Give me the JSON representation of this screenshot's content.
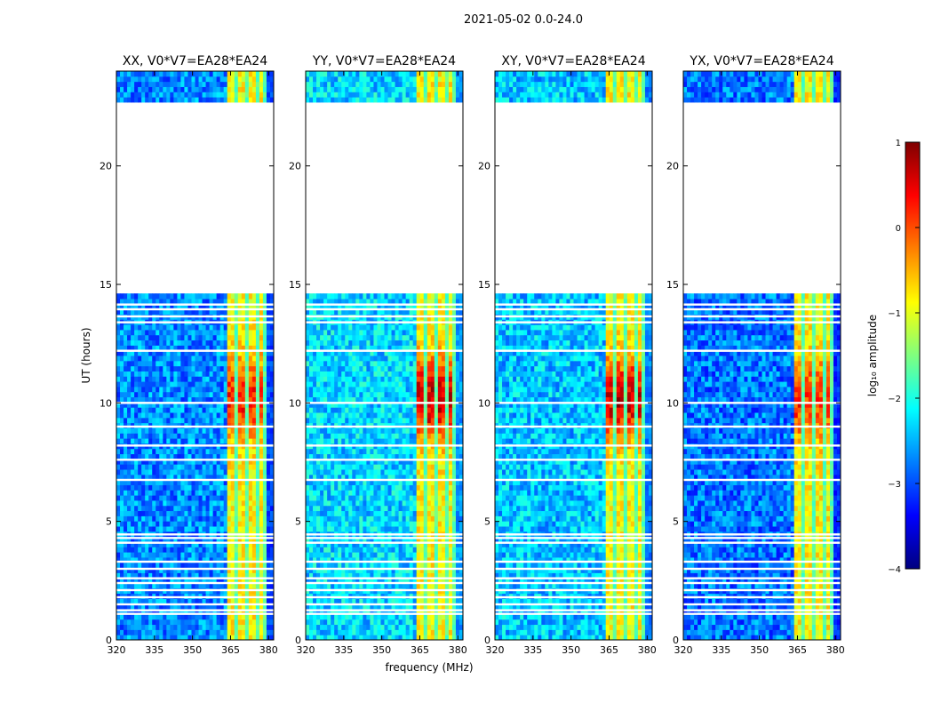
{
  "figure": {
    "suptitle": "2021-05-02 0.0-24.0",
    "xlabel": "frequency (MHz)",
    "ylabel": "UT (hours)"
  },
  "chart_data": [
    {
      "type": "heatmap",
      "title": "XX, V0*V7=EA28*EA24",
      "xlim": [
        320,
        382
      ],
      "ylim": [
        0,
        24
      ],
      "xticks": [
        320,
        335,
        350,
        365,
        380
      ],
      "yticks": [
        0,
        5,
        10,
        15,
        20
      ],
      "band": [
        363,
        377
      ],
      "peak": 0.2,
      "bg": -2.7
    },
    {
      "type": "heatmap",
      "title": "YY, V0*V7=EA28*EA24",
      "xlim": [
        320,
        382
      ],
      "ylim": [
        0,
        24
      ],
      "xticks": [
        320,
        335,
        350,
        365,
        380
      ],
      "yticks": [
        0,
        5,
        10,
        15,
        20
      ],
      "band": [
        363,
        377
      ],
      "peak": 0.7,
      "bg": -2.3
    },
    {
      "type": "heatmap",
      "title": "XY, V0*V7=EA28*EA24",
      "xlim": [
        320,
        382
      ],
      "ylim": [
        0,
        24
      ],
      "xticks": [
        320,
        335,
        350,
        365,
        380
      ],
      "yticks": [
        0,
        5,
        10,
        15,
        20
      ],
      "band": [
        363,
        377
      ],
      "peak": 0.7,
      "bg": -2.4
    },
    {
      "type": "heatmap",
      "title": "YX, V0*V7=EA28*EA24",
      "xlim": [
        320,
        382
      ],
      "ylim": [
        0,
        24
      ],
      "xticks": [
        320,
        335,
        350,
        365,
        380
      ],
      "yticks": [
        0,
        5,
        10,
        15,
        20
      ],
      "band": [
        363,
        377
      ],
      "peak": 0.2,
      "bg": -2.8
    }
  ],
  "data_coverage": {
    "gap_hours": [
      22.7,
      14.6
    ],
    "flagged_rows_hours": [
      1.1,
      1.25,
      1.5,
      1.8,
      2.1,
      2.4,
      2.6,
      3.0,
      3.3,
      4.1,
      4.3,
      4.45,
      6.75,
      7.6,
      8.2,
      9.0,
      10.0,
      12.2,
      13.4,
      13.65,
      13.95,
      14.15
    ],
    "band_edges_mhz": [
      367.5,
      372,
      376,
      378.5
    ]
  },
  "colorbar": {
    "label": "log₁₀ amplitude",
    "range": [
      -4,
      1
    ],
    "ticks": [
      "1",
      "0",
      "−1",
      "−2",
      "−3",
      "−4"
    ],
    "colors": [
      "#00007f",
      "#0000ff",
      "#007fff",
      "#00ffff",
      "#7fff7f",
      "#ffff00",
      "#ff7f00",
      "#ff0000",
      "#7f0000"
    ]
  }
}
